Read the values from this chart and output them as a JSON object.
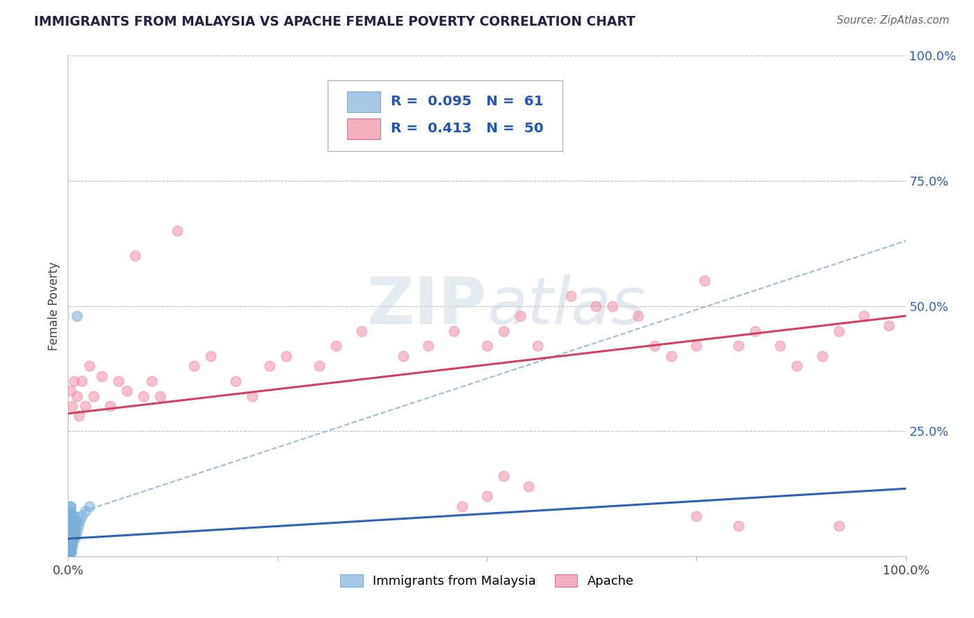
{
  "title": "IMMIGRANTS FROM MALAYSIA VS APACHE FEMALE POVERTY CORRELATION CHART",
  "source": "Source: ZipAtlas.com",
  "ylabel": "Female Poverty",
  "watermark_zip": "ZIP",
  "watermark_atlas": "atlas",
  "legend_entries": [
    {
      "label": "Immigrants from Malaysia",
      "R": 0.095,
      "N": 61,
      "color": "#a8c8e8",
      "edge": "#7aafd4"
    },
    {
      "label": "Apache",
      "R": 0.413,
      "N": 50,
      "color": "#f5b0c0",
      "edge": "#e07090"
    }
  ],
  "malaysia_color": "#7ab0d8",
  "apache_color": "#f090a8",
  "malaysia_line_color": "#3060b0",
  "apache_line_color": "#d04060",
  "dashed_line_color": "#90b8d8",
  "grid_color": "#c0c0c0",
  "background_color": "#ffffff",
  "ytick_vals": [
    0.0,
    0.25,
    0.5,
    0.75,
    1.0
  ],
  "ytick_labels": [
    "",
    "25.0%",
    "50.0%",
    "75.0%",
    "100.0%"
  ],
  "xlim": [
    0.0,
    1.0
  ],
  "ylim": [
    0.0,
    1.0
  ]
}
